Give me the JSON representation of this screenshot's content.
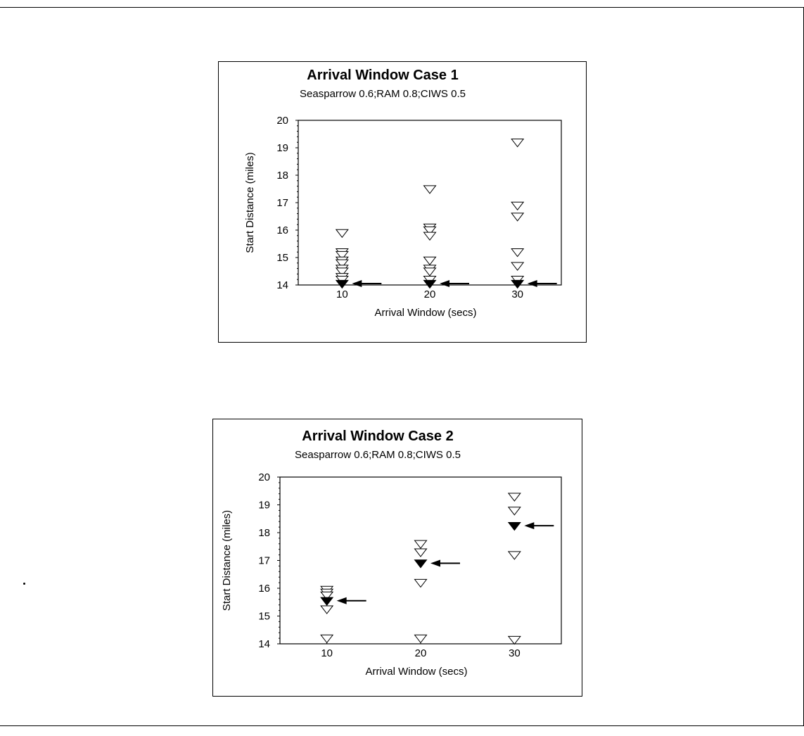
{
  "chart_data": [
    {
      "type": "scatter",
      "title": "Arrival Window Case 1",
      "subtitle": "Seasparrow 0.6;RAM 0.8;CIWS 0.5",
      "xlabel": "Arrival Window (secs)",
      "ylabel": "Start Distance (miles)",
      "xlim": [
        5,
        35
      ],
      "ylim": [
        14,
        20
      ],
      "x_ticks": [
        10,
        20,
        30
      ],
      "y_ticks": [
        14,
        15,
        16,
        17,
        18,
        19,
        20
      ],
      "series": [
        {
          "marker": "open-down-triangle",
          "points": [
            [
              10,
              15.9
            ],
            [
              10,
              15.2
            ],
            [
              10,
              15.1
            ],
            [
              10,
              14.9
            ],
            [
              10,
              14.8
            ],
            [
              10,
              14.6
            ],
            [
              10,
              14.5
            ],
            [
              10,
              14.3
            ],
            [
              10,
              14.2
            ],
            [
              20,
              17.5
            ],
            [
              20,
              16.1
            ],
            [
              20,
              16.0
            ],
            [
              20,
              15.8
            ],
            [
              20,
              14.9
            ],
            [
              20,
              14.6
            ],
            [
              20,
              14.5
            ],
            [
              20,
              14.2
            ],
            [
              30,
              19.2
            ],
            [
              30,
              16.9
            ],
            [
              30,
              16.5
            ],
            [
              30,
              15.2
            ],
            [
              30,
              14.7
            ],
            [
              30,
              14.2
            ]
          ]
        },
        {
          "marker": "filled-down-triangle",
          "points": [
            [
              10,
              14.05
            ],
            [
              20,
              14.05
            ],
            [
              30,
              14.05
            ]
          ]
        }
      ],
      "arrows": [
        {
          "x": 10,
          "y": 14.05
        },
        {
          "x": 20,
          "y": 14.05
        },
        {
          "x": 30,
          "y": 14.05
        }
      ]
    },
    {
      "type": "scatter",
      "title": "Arrival Window Case 2",
      "subtitle": "Seasparrow 0.6;RAM 0.8;CIWS 0.5",
      "xlabel": "Arrival Window (secs)",
      "ylabel": "Start Distance (miles)",
      "xlim": [
        5,
        35
      ],
      "ylim": [
        14,
        20
      ],
      "x_ticks": [
        10,
        20,
        30
      ],
      "y_ticks": [
        14,
        15,
        16,
        17,
        18,
        19,
        20
      ],
      "series": [
        {
          "marker": "open-down-triangle",
          "points": [
            [
              10,
              15.95
            ],
            [
              10,
              15.85
            ],
            [
              10,
              15.75
            ],
            [
              10,
              15.25
            ],
            [
              10,
              14.2
            ],
            [
              20,
              17.6
            ],
            [
              20,
              17.3
            ],
            [
              20,
              16.2
            ],
            [
              20,
              14.2
            ],
            [
              30,
              19.3
            ],
            [
              30,
              18.8
            ],
            [
              30,
              17.2
            ],
            [
              30,
              14.15
            ]
          ]
        },
        {
          "marker": "filled-down-triangle",
          "points": [
            [
              10,
              15.55
            ],
            [
              20,
              16.9
            ],
            [
              30,
              18.25
            ]
          ]
        }
      ],
      "arrows": [
        {
          "x": 10,
          "y": 15.55
        },
        {
          "x": 20,
          "y": 16.9
        },
        {
          "x": 30,
          "y": 18.25
        }
      ]
    }
  ]
}
